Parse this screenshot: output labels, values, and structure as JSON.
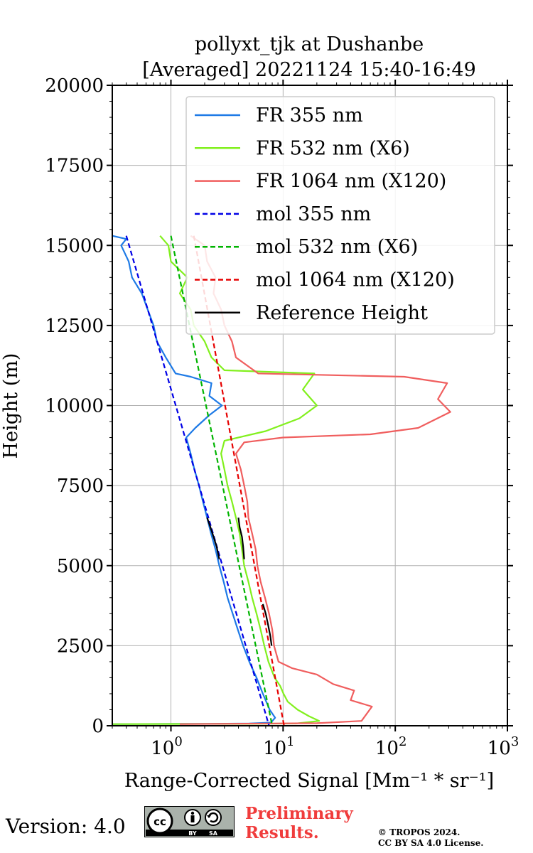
{
  "chart_data": {
    "type": "line",
    "title": [
      "pollyxt_tjk at Dushanbe",
      "[Averaged] 20221124 15:40-16:49"
    ],
    "xlabel": "Range-Corrected Signal [Mm⁻¹ * sr⁻¹]",
    "ylabel": "Height (m)",
    "xscale": "log",
    "xlim": [
      0.3,
      1000
    ],
    "ylim": [
      0,
      20000
    ],
    "grid": true,
    "legend_position": "top-right",
    "xticks": [
      1,
      10,
      100,
      1000
    ],
    "xtick_labels": [
      [
        "10",
        "0"
      ],
      [
        "10",
        "1"
      ],
      [
        "10",
        "2"
      ],
      [
        "10",
        "3"
      ]
    ],
    "yticks": [
      0,
      2500,
      5000,
      7500,
      10000,
      12500,
      15000,
      17500,
      20000
    ],
    "series": [
      {
        "name": "FR 355 nm",
        "color": "#1e7ae6",
        "style": "solid",
        "points": [
          [
            0.3,
            50
          ],
          [
            2,
            60
          ],
          [
            5,
            70
          ],
          [
            7.8,
            100
          ],
          [
            8.5,
            250
          ],
          [
            7.6,
            500
          ],
          [
            6.6,
            1000
          ],
          [
            5.8,
            1500
          ],
          [
            5.0,
            2000
          ],
          [
            4.4,
            2500
          ],
          [
            3.95,
            3000
          ],
          [
            3.55,
            3500
          ],
          [
            3.2,
            4000
          ],
          [
            2.95,
            4500
          ],
          [
            2.7,
            5000
          ],
          [
            2.5,
            5500
          ],
          [
            2.28,
            6000
          ],
          [
            2.1,
            6500
          ],
          [
            1.93,
            7000
          ],
          [
            1.78,
            7500
          ],
          [
            1.62,
            8000
          ],
          [
            1.5,
            8500
          ],
          [
            1.37,
            9000
          ],
          [
            1.65,
            9300
          ],
          [
            2.2,
            9700
          ],
          [
            2.85,
            10000
          ],
          [
            2.2,
            10300
          ],
          [
            2.3,
            10700
          ],
          [
            1.5,
            10900
          ],
          [
            1.1,
            11000
          ],
          [
            0.9,
            11500
          ],
          [
            0.75,
            12000
          ],
          [
            0.7,
            12500
          ],
          [
            0.62,
            13000
          ],
          [
            0.55,
            13500
          ],
          [
            0.45,
            14000
          ],
          [
            0.42,
            14500
          ],
          [
            0.36,
            15000
          ],
          [
            0.4,
            15200
          ],
          [
            0.3,
            15300
          ]
        ]
      },
      {
        "name": "FR 532 nm (X6)",
        "color": "#82f01e",
        "style": "solid",
        "points": [
          [
            0.3,
            50
          ],
          [
            5,
            60
          ],
          [
            13,
            70
          ],
          [
            21,
            150
          ],
          [
            17,
            300
          ],
          [
            13.5,
            500
          ],
          [
            11,
            750
          ],
          [
            10.1,
            1000
          ],
          [
            9.4,
            1250
          ],
          [
            8.4,
            1500
          ],
          [
            7.4,
            2000
          ],
          [
            6.8,
            2500
          ],
          [
            6.3,
            3000
          ],
          [
            5.8,
            3500
          ],
          [
            5.3,
            4000
          ],
          [
            4.9,
            4500
          ],
          [
            4.5,
            5000
          ],
          [
            4.3,
            5500
          ],
          [
            4.1,
            6000
          ],
          [
            3.8,
            6500
          ],
          [
            3.5,
            7000
          ],
          [
            3.2,
            7500
          ],
          [
            3.0,
            8000
          ],
          [
            2.8,
            8500
          ],
          [
            3.0,
            8900
          ],
          [
            7,
            9200
          ],
          [
            14,
            9600
          ],
          [
            20,
            10000
          ],
          [
            15,
            10500
          ],
          [
            19,
            11000
          ],
          [
            3,
            11100
          ],
          [
            2.3,
            11500
          ],
          [
            2.0,
            12000
          ],
          [
            1.6,
            12500
          ],
          [
            1.5,
            13000
          ],
          [
            1.2,
            13500
          ],
          [
            1.4,
            14000
          ],
          [
            1.0,
            14500
          ],
          [
            0.95,
            15000
          ],
          [
            0.8,
            15300
          ]
        ]
      },
      {
        "name": "FR 1064 nm (X120)",
        "color": "#f05e5e",
        "style": "solid",
        "points": [
          [
            1.2,
            50
          ],
          [
            20,
            80
          ],
          [
            50,
            150
          ],
          [
            62,
            600
          ],
          [
            40,
            800
          ],
          [
            43,
            1100
          ],
          [
            28,
            1300
          ],
          [
            20,
            1600
          ],
          [
            12,
            1800
          ],
          [
            9.1,
            2000
          ],
          [
            8.3,
            2500
          ],
          [
            8.0,
            3000
          ],
          [
            7.5,
            3500
          ],
          [
            6.9,
            4000
          ],
          [
            6.3,
            4500
          ],
          [
            5.9,
            5000
          ],
          [
            5.7,
            5500
          ],
          [
            5.3,
            6000
          ],
          [
            4.9,
            6500
          ],
          [
            4.8,
            7000
          ],
          [
            4.5,
            7500
          ],
          [
            4.2,
            8000
          ],
          [
            3.8,
            8500
          ],
          [
            4.5,
            8850
          ],
          [
            10,
            9000
          ],
          [
            60,
            9100
          ],
          [
            160,
            9300
          ],
          [
            310,
            9800
          ],
          [
            240,
            10200
          ],
          [
            290,
            10700
          ],
          [
            120,
            10900
          ],
          [
            6,
            11000
          ],
          [
            3.8,
            11500
          ],
          [
            3.5,
            12000
          ],
          [
            3.0,
            12500
          ],
          [
            2.8,
            13000
          ],
          [
            2.4,
            13500
          ],
          [
            2.5,
            14000
          ],
          [
            2.1,
            14500
          ],
          [
            2.0,
            15000
          ],
          [
            1.5,
            15300
          ]
        ]
      },
      {
        "name": "mol 355 nm",
        "color": "#0000e6",
        "style": "dashed",
        "points": [
          [
            0.4,
            15300
          ],
          [
            7.5,
            0
          ]
        ]
      },
      {
        "name": "mol 532 nm (X6)",
        "color": "#00b400",
        "style": "dashed",
        "points": [
          [
            1.0,
            15300
          ],
          [
            8.0,
            0
          ]
        ]
      },
      {
        "name": "mol 1064 nm (X120)",
        "color": "#e60000",
        "style": "dashed",
        "points": [
          [
            1.6,
            15300
          ],
          [
            10.2,
            0
          ]
        ]
      },
      {
        "name": "Reference Height",
        "color": "#000000",
        "style": "solid",
        "segments": [
          [
            [
              2.1,
              6500
            ],
            [
              2.25,
              6200
            ],
            [
              2.4,
              5900
            ],
            [
              2.55,
              5600
            ],
            [
              2.7,
              5200
            ]
          ],
          [
            [
              4.0,
              6500
            ],
            [
              4.1,
              6200
            ],
            [
              4.3,
              5900
            ],
            [
              4.4,
              5600
            ],
            [
              4.5,
              5200
            ]
          ],
          [
            [
              6.6,
              3800
            ],
            [
              7.0,
              3500
            ],
            [
              7.3,
              3200
            ],
            [
              7.7,
              2800
            ],
            [
              7.9,
              2500
            ]
          ]
        ]
      }
    ]
  },
  "footer": {
    "version": "Version: 4.0",
    "cc_badge": {
      "cc": "cc",
      "by": "BY",
      "sa": "SA"
    },
    "preliminary_line1": "Preliminary",
    "preliminary_line2": "Results.",
    "copyright_line1": "© TROPOS 2024.",
    "copyright_line2": "CC BY SA 4.0 License."
  }
}
